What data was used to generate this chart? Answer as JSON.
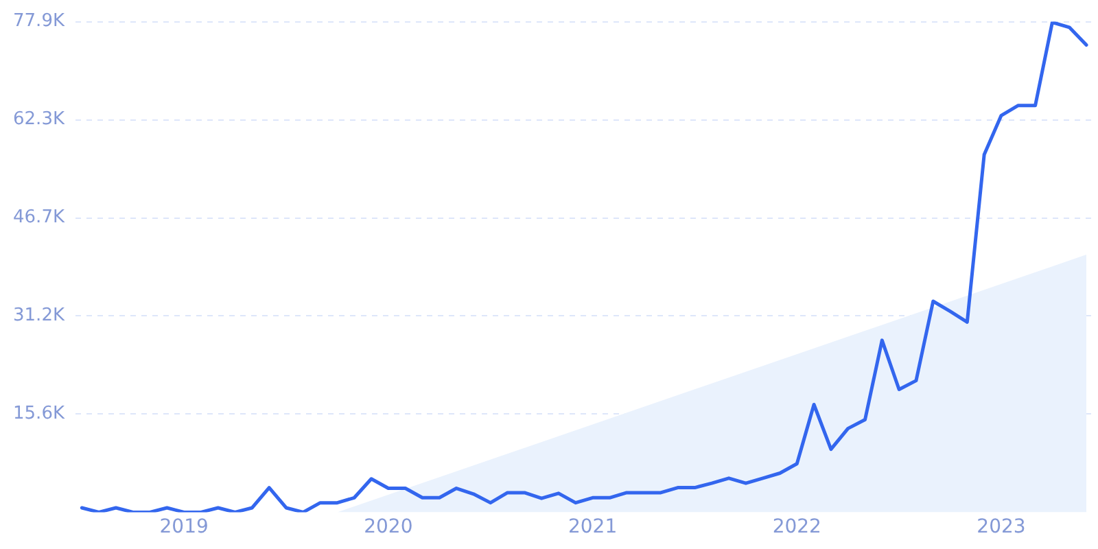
{
  "chart_data": {
    "type": "line",
    "x": [
      "2018-07",
      "2018-08",
      "2018-09",
      "2018-10",
      "2018-11",
      "2018-12",
      "2019-01",
      "2019-02",
      "2019-03",
      "2019-04",
      "2019-05",
      "2019-06",
      "2019-07",
      "2019-08",
      "2019-09",
      "2019-10",
      "2019-11",
      "2019-12",
      "2020-01",
      "2020-02",
      "2020-03",
      "2020-04",
      "2020-05",
      "2020-06",
      "2020-07",
      "2020-08",
      "2020-09",
      "2020-10",
      "2020-11",
      "2020-12",
      "2021-01",
      "2021-02",
      "2021-03",
      "2021-04",
      "2021-05",
      "2021-06",
      "2021-07",
      "2021-08",
      "2021-09",
      "2021-10",
      "2021-11",
      "2021-12",
      "2022-01",
      "2022-02",
      "2022-03",
      "2022-04",
      "2022-05",
      "2022-06",
      "2022-07",
      "2022-08",
      "2022-09",
      "2022-10",
      "2022-11",
      "2022-12",
      "2023-01",
      "2023-02",
      "2023-03",
      "2023-04",
      "2023-05",
      "2023-06"
    ],
    "series": [
      {
        "type": "area",
        "color": "#eaf2fd",
        "x": [
          "2019-10",
          "2023-06"
        ],
        "values": [
          0,
          40900
        ]
      },
      {
        "color": "#3366ee",
        "values": [
          700,
          0,
          700,
          0,
          0,
          700,
          0,
          0,
          700,
          0,
          700,
          3900,
          700,
          0,
          1500,
          1500,
          2300,
          5300,
          3800,
          3800,
          2300,
          2300,
          3800,
          2900,
          1500,
          3100,
          3100,
          2200,
          3000,
          1500,
          2300,
          2300,
          3100,
          3100,
          3100,
          3900,
          3900,
          4600,
          5400,
          4600,
          5400,
          6200,
          7700,
          17100,
          10000,
          13300,
          14700,
          27300,
          19500,
          20900,
          33500,
          31900,
          30200,
          56800,
          63000,
          64600,
          64600,
          77800,
          77000,
          74200
        ]
      }
    ],
    "xlim": [
      "2018-06-20",
      "2023-06-12"
    ],
    "xticks": [
      "2019",
      "2020",
      "2021",
      "2022",
      "2023"
    ],
    "ylim": [
      0,
      77900
    ],
    "yticks": [
      {
        "value": 15580,
        "label": "15.6K"
      },
      {
        "value": 31160,
        "label": "31.2K"
      },
      {
        "value": 46740,
        "label": "46.7K"
      },
      {
        "value": 62320,
        "label": "62.3K"
      },
      {
        "value": 77900,
        "label": "77.9K"
      }
    ],
    "grid": "y",
    "legend": false,
    "marker": "none",
    "line_style": "solid"
  }
}
